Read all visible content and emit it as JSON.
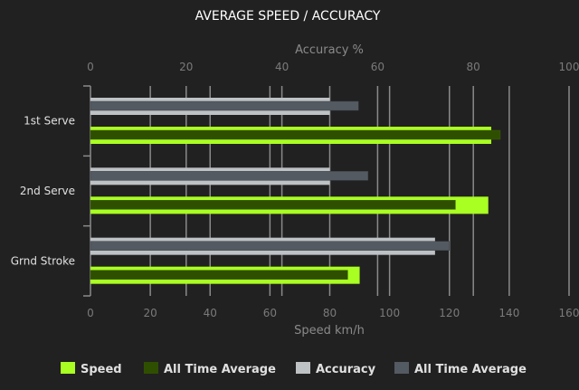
{
  "chart_data": {
    "type": "bar",
    "orientation": "horizontal",
    "title": "AVERAGE SPEED / ACCURACY",
    "categories": [
      "1st Serve",
      "2nd Serve",
      "Grnd Stroke"
    ],
    "top_axis": {
      "label": "Accuracy %",
      "range": [
        0,
        100
      ],
      "ticks": [
        0,
        20,
        40,
        60,
        80,
        100
      ]
    },
    "bottom_axis": {
      "label": "Speed km/h",
      "range": [
        0,
        160
      ],
      "ticks": [
        0,
        20,
        40,
        60,
        80,
        100,
        120,
        140,
        160
      ]
    },
    "grid": true,
    "legend_position": "bottom",
    "series": [
      {
        "name": "Speed",
        "axis": "speed",
        "values": [
          134,
          133,
          90
        ],
        "color": "#aaff22"
      },
      {
        "name": "All Time Average",
        "axis": "speed",
        "values": [
          137,
          122,
          86
        ],
        "color": "#2f4f00"
      },
      {
        "name": "Accuracy",
        "axis": "accuracy",
        "values": [
          50,
          50,
          72
        ],
        "color": "#bec2c4"
      },
      {
        "name": "All Time Average",
        "axis": "accuracy",
        "values": [
          56,
          58,
          75
        ],
        "color": "#545a62"
      }
    ]
  }
}
